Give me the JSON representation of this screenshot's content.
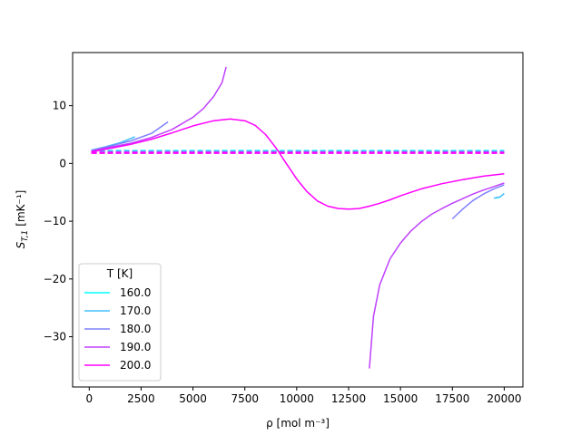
{
  "chart_data": {
    "type": "line",
    "title": "",
    "xlabel": "ρ [mol m⁻³]",
    "ylabel_main": "S",
    "ylabel_sub": "T,1",
    "ylabel_unit": "[mK⁻¹]",
    "xlim": [
      -800,
      20900
    ],
    "ylim": [
      -38.7,
      19.2
    ],
    "xticks": [
      0,
      2500,
      5000,
      7500,
      10000,
      12500,
      15000,
      17500,
      20000
    ],
    "yticks": [
      -30,
      -20,
      -10,
      0,
      10
    ],
    "ytick_labels": [
      "−30",
      "−20",
      "−10",
      "0",
      "10"
    ],
    "grid": false,
    "legend": {
      "title": "T [K]",
      "placement": "lower-left"
    },
    "series": [
      {
        "name": "160.0",
        "color": "#00ffff",
        "solid_segments": [
          [
            [
              100,
              2.3
            ],
            [
              500,
              2.6
            ],
            [
              900,
              2.9
            ],
            [
              1300,
              3.3
            ]
          ],
          [
            [
              19600,
              -6.0
            ],
            [
              19800,
              -5.8
            ]
          ]
        ],
        "dashed": {
          "x": [
            100,
            20000
          ],
          "y": [
            2.2,
            2.2
          ]
        }
      },
      {
        "name": "170.0",
        "color": "#40bfff",
        "solid_segments": [
          [
            [
              100,
              2.3
            ],
            [
              800,
              2.9
            ],
            [
              1500,
              3.6
            ],
            [
              2200,
              4.6
            ]
          ],
          [
            [
              19500,
              -6.0
            ],
            [
              19800,
              -5.8
            ],
            [
              20000,
              -5.2
            ]
          ]
        ],
        "dashed": {
          "x": [
            100,
            20000
          ],
          "y": [
            2.1,
            2.1
          ]
        }
      },
      {
        "name": "180.0",
        "color": "#7f80ff",
        "solid_segments": [
          [
            [
              100,
              2.2
            ],
            [
              1000,
              3.0
            ],
            [
              2000,
              3.9
            ],
            [
              3000,
              5.2
            ],
            [
              3800,
              7.2
            ]
          ],
          [
            [
              17500,
              -9.6
            ],
            [
              18000,
              -7.9
            ],
            [
              18500,
              -6.4
            ],
            [
              19000,
              -5.3
            ],
            [
              19500,
              -4.4
            ],
            [
              20000,
              -3.7
            ]
          ]
        ],
        "dashed": {
          "x": [
            100,
            20000
          ],
          "y": [
            2.0,
            2.0
          ]
        }
      },
      {
        "name": "190.0",
        "color": "#bf40ff",
        "solid_segments": [
          [
            [
              100,
              2.2
            ],
            [
              1000,
              2.8
            ],
            [
              2000,
              3.5
            ],
            [
              3000,
              4.5
            ],
            [
              4000,
              5.9
            ],
            [
              5000,
              8.0
            ],
            [
              5500,
              9.5
            ],
            [
              6000,
              11.6
            ],
            [
              6400,
              14.0
            ],
            [
              6600,
              16.7
            ]
          ],
          [
            [
              13500,
              -35.5
            ],
            [
              13700,
              -26.5
            ],
            [
              14000,
              -21.0
            ],
            [
              14500,
              -16.5
            ],
            [
              15000,
              -13.8
            ],
            [
              15500,
              -11.7
            ],
            [
              16000,
              -10.1
            ],
            [
              16500,
              -8.8
            ],
            [
              17000,
              -7.8
            ],
            [
              17500,
              -6.9
            ],
            [
              18000,
              -6.1
            ],
            [
              18500,
              -5.3
            ],
            [
              19000,
              -4.6
            ],
            [
              19500,
              -4.0
            ],
            [
              20000,
              -3.4
            ]
          ]
        ],
        "dashed": {
          "x": [
            100,
            20000
          ],
          "y": [
            1.9,
            1.9
          ]
        }
      },
      {
        "name": "200.0",
        "color": "#ff00ff",
        "solid_segments": [
          [
            [
              100,
              2.0
            ],
            [
              1000,
              2.6
            ],
            [
              2000,
              3.3
            ],
            [
              3000,
              4.2
            ],
            [
              4000,
              5.3
            ],
            [
              5000,
              6.5
            ],
            [
              6000,
              7.4
            ],
            [
              6800,
              7.7
            ],
            [
              7500,
              7.4
            ],
            [
              8000,
              6.6
            ],
            [
              8500,
              5.0
            ],
            [
              9000,
              2.7
            ],
            [
              9500,
              0.0
            ],
            [
              10000,
              -2.7
            ],
            [
              10500,
              -4.9
            ],
            [
              11000,
              -6.5
            ],
            [
              11500,
              -7.4
            ],
            [
              12000,
              -7.8
            ],
            [
              12500,
              -7.9
            ],
            [
              13000,
              -7.8
            ],
            [
              13500,
              -7.4
            ],
            [
              14000,
              -6.9
            ],
            [
              14500,
              -6.3
            ],
            [
              15000,
              -5.6
            ],
            [
              15500,
              -5.0
            ],
            [
              16000,
              -4.4
            ],
            [
              17000,
              -3.5
            ],
            [
              18000,
              -2.8
            ],
            [
              19000,
              -2.2
            ],
            [
              20000,
              -1.8
            ]
          ]
        ],
        "dashed": {
          "x": [
            100,
            20000
          ],
          "y": [
            1.8,
            1.8
          ]
        }
      }
    ]
  }
}
